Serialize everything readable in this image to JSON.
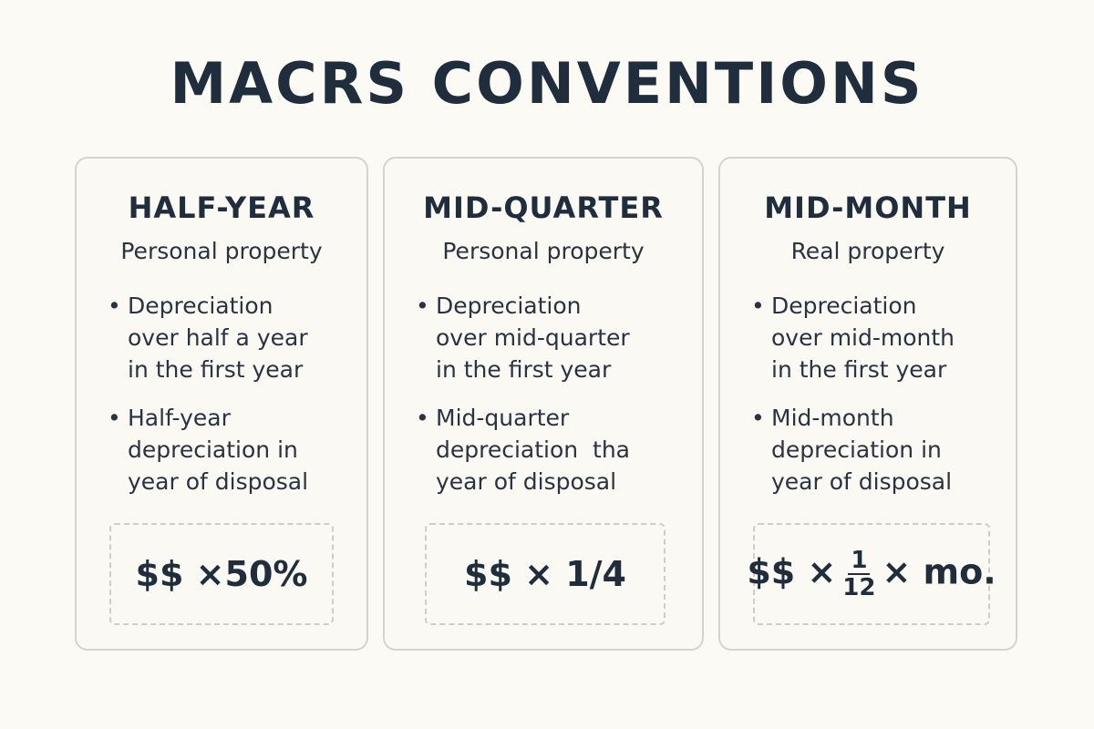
{
  "title": "MACRS CONVENTIONS",
  "cards": [
    {
      "title": "HALF-YEAR",
      "subtitle": "Personal property",
      "bullets": [
        [
          "Depreciation",
          "over half a year",
          "in the first year"
        ],
        [
          "Half-year",
          "depreciation in",
          "year of disposal"
        ]
      ],
      "formula": "$$ ×50%"
    },
    {
      "title": "MID-QUARTER",
      "subtitle": "Personal property",
      "bullets": [
        [
          "Depreciation",
          "over mid-quarter",
          "in the first year"
        ],
        [
          "Mid-quarter",
          "depreciation  tha",
          "year of disposal"
        ]
      ],
      "formula": "$$ × 1/4"
    },
    {
      "title": "MID-MONTH",
      "subtitle": "Real property",
      "bullets": [
        [
          "Depreciation",
          "over mid-month",
          "in the first year"
        ],
        [
          "Mid-month",
          "depreciation in",
          "year of disposal"
        ]
      ],
      "formula": {
        "prefix": "$$ ×",
        "numerator": "1",
        "denominator": "12",
        "suffix": "× mo."
      }
    }
  ]
}
